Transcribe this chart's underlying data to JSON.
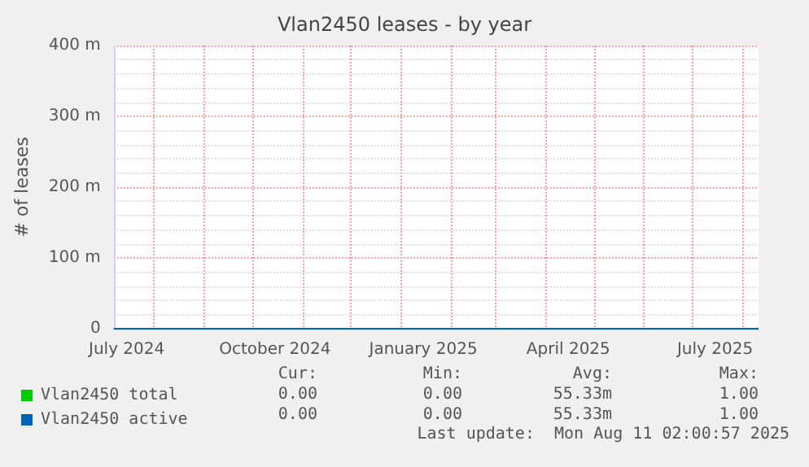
{
  "chart_data": {
    "type": "line",
    "title": "Vlan2450 leases - by year",
    "ylabel": "# of leases",
    "x": [
      "2024-07-07",
      "2025-08-11"
    ],
    "series": [
      {
        "name": "Vlan2450 total",
        "color": "#00cc00",
        "values": [
          null,
          null
        ]
      },
      {
        "name": "Vlan2450 active",
        "color": "#0066b3",
        "values": [
          0,
          0
        ]
      }
    ],
    "xlim": [
      "2024-07-07",
      "2025-08-11"
    ],
    "xticks": [
      {
        "value": "2024-07-15",
        "label": "July 2024"
      },
      {
        "value": "2024-08-01",
        "label": null
      },
      {
        "value": "2024-09-01",
        "label": null
      },
      {
        "value": "2024-10-01",
        "label": null
      },
      {
        "value": "2024-10-15",
        "label": "October 2024"
      },
      {
        "value": "2024-11-01",
        "label": null
      },
      {
        "value": "2024-12-01",
        "label": null
      },
      {
        "value": "2025-01-01",
        "label": null
      },
      {
        "value": "2025-01-15",
        "label": "January 2025"
      },
      {
        "value": "2025-02-01",
        "label": null
      },
      {
        "value": "2025-03-01",
        "label": null
      },
      {
        "value": "2025-04-01",
        "label": null
      },
      {
        "value": "2025-04-15",
        "label": "April 2025"
      },
      {
        "value": "2025-05-01",
        "label": null
      },
      {
        "value": "2025-06-01",
        "label": null
      },
      {
        "value": "2025-07-01",
        "label": null
      },
      {
        "value": "2025-07-15",
        "label": "July 2025"
      },
      {
        "value": "2025-08-01",
        "label": null
      }
    ],
    "ylim": [
      0,
      400
    ],
    "yticks": [
      0,
      {
        "value": 100,
        "label": "100 m"
      },
      {
        "value": 200,
        "label": "200 m"
      },
      {
        "value": 300,
        "label": "300 m"
      },
      {
        "value": 400,
        "label": "400 m"
      }
    ],
    "grid": true,
    "legend": "bottom left",
    "marker": "none",
    "line_style": "solid",
    "annotations": [
      "Cur:",
      "Min:",
      "Avg:",
      "Max:",
      "0.00",
      "0.00",
      "55.33m",
      "1.00",
      "0.00",
      "0.00",
      "55.33m",
      "1.00",
      "Last update:  Mon Aug 11 02:00:57 2025"
    ]
  }
}
